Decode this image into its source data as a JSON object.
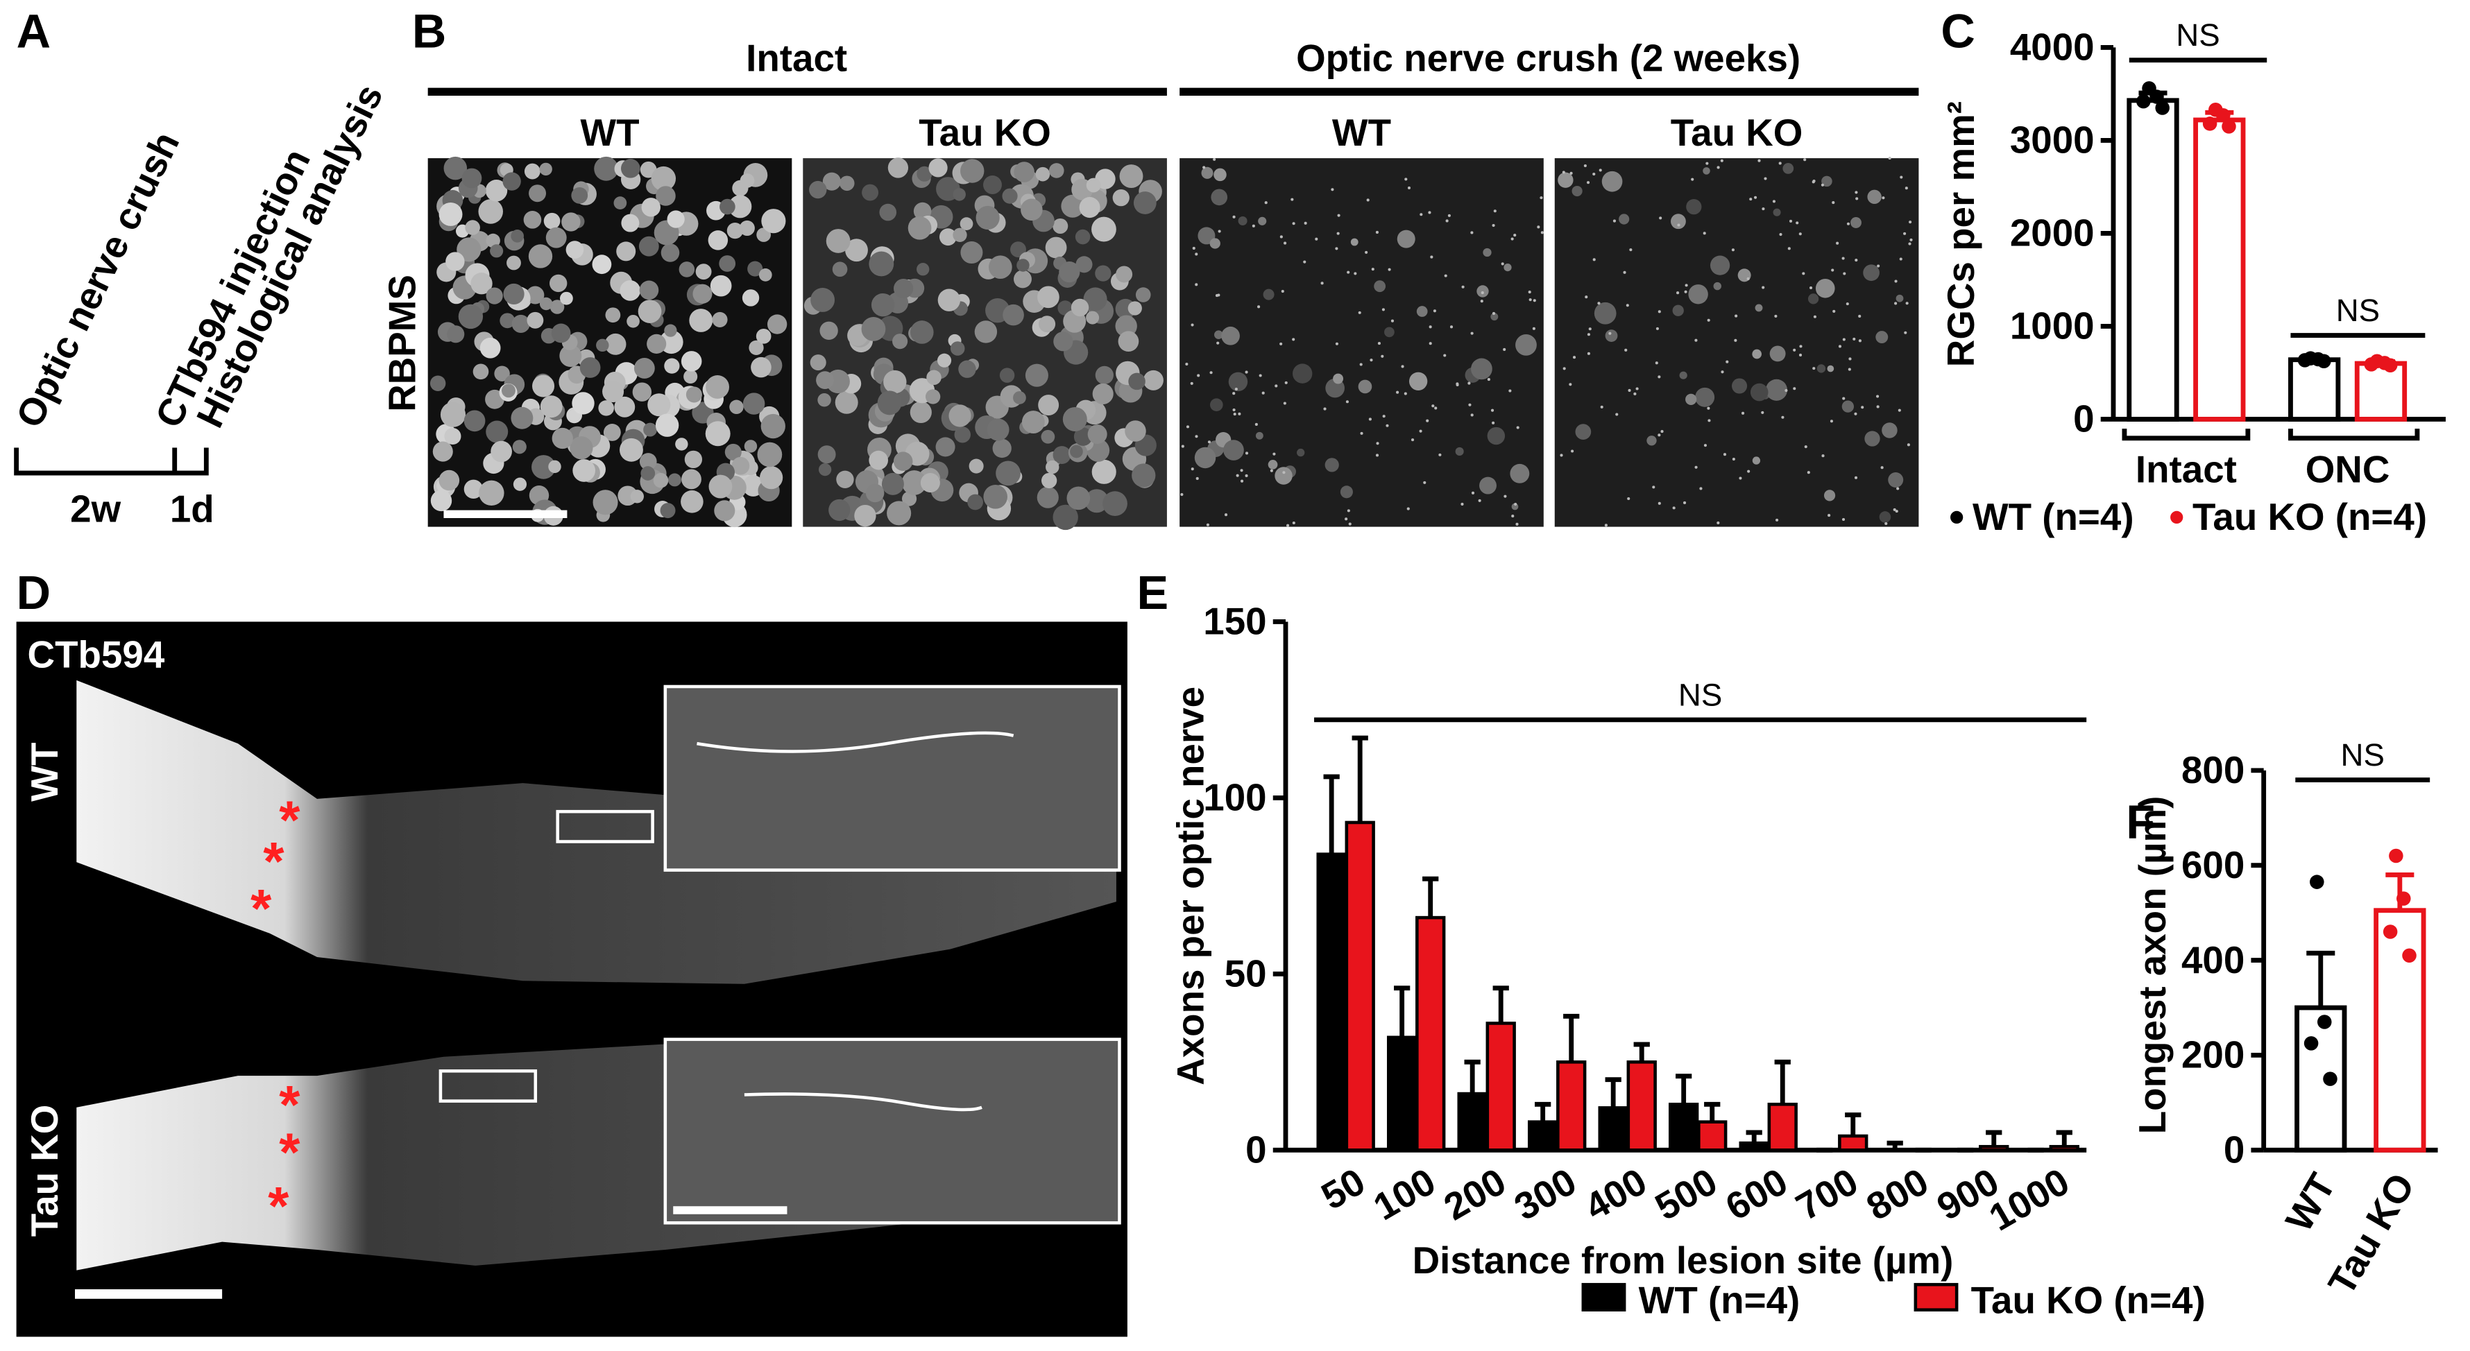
{
  "panel_labels": [
    "A",
    "B",
    "C",
    "D",
    "E",
    "F"
  ],
  "timeline": {
    "events": [
      "Optic nerve crush",
      "CTb594 injection",
      "Histological analysis"
    ],
    "intervals": [
      "2w",
      "1d"
    ]
  },
  "micrographs": {
    "groups": [
      "Intact",
      "Optic nerve crush (2 weeks)"
    ],
    "columns": [
      "WT",
      "Tau KO",
      "WT",
      "Tau KO"
    ],
    "stain": "RBPMS"
  },
  "nerves": {
    "stain": "CTb594",
    "rows": [
      "WT",
      "Tau KO"
    ]
  },
  "chart_data": [
    {
      "type": "bar",
      "bar_style": "outline",
      "ylabel": "RGCs per mm²",
      "categories": [
        "Intact",
        "ONC"
      ],
      "series": [
        {
          "name": "WT (n=4)",
          "color": "#000000",
          "values": [
            3430,
            640
          ],
          "errors": [
            80,
            20
          ],
          "points": [
            [
              3560,
              3470,
              3420,
              3350
            ],
            [
              655,
              645,
              635,
              625
            ]
          ]
        },
        {
          "name": "Tau KO (n=4)",
          "color": "#e8141c",
          "values": [
            3220,
            600
          ],
          "errors": [
            80,
            20
          ],
          "points": [
            [
              3330,
              3270,
              3180,
              3150
            ],
            [
              625,
              605,
              590,
              580
            ]
          ]
        }
      ],
      "ylim": [
        0,
        4000
      ],
      "yticks": [
        0,
        1000,
        2000,
        3000,
        4000
      ],
      "annotations": [
        "NS",
        "NS"
      ],
      "legend": "bottom"
    },
    {
      "type": "bar",
      "bar_style": "filled",
      "ylabel": "Axons per optic nerve",
      "xlabel": "Distance from lesion site (µm)",
      "categories": [
        "50",
        "100",
        "200",
        "300",
        "400",
        "500",
        "600",
        "700",
        "800",
        "900",
        "1000"
      ],
      "series": [
        {
          "name": "WT (n=4)",
          "color": "#000000",
          "values": [
            84,
            32,
            16,
            8,
            12,
            13,
            2,
            0,
            0,
            0,
            0
          ],
          "errors": [
            22,
            14,
            9,
            5,
            8,
            8,
            3,
            0,
            2,
            0,
            0
          ]
        },
        {
          "name": "Tau KO (n=4)",
          "color": "#e8141c",
          "values": [
            93,
            66,
            36,
            25,
            25,
            8,
            13,
            4,
            0,
            1,
            1
          ],
          "errors": [
            24,
            11,
            10,
            13,
            5,
            5,
            12,
            6,
            0,
            4,
            4
          ]
        }
      ],
      "ylim": [
        0,
        150
      ],
      "yticks": [
        0,
        50,
        100,
        150
      ],
      "annotations": [
        "NS"
      ],
      "legend": "bottom"
    },
    {
      "type": "bar",
      "bar_style": "outline",
      "ylabel": "Longest axon (µm)",
      "categories": [
        "WT",
        "Tau KO"
      ],
      "values": [
        300,
        505
      ],
      "errors": [
        115,
        75
      ],
      "colors": [
        "#000000",
        "#e8141c"
      ],
      "points": [
        [
          565,
          270,
          225,
          150
        ],
        [
          620,
          530,
          460,
          410
        ]
      ],
      "ylim": [
        0,
        800
      ],
      "yticks": [
        0,
        200,
        400,
        600,
        800
      ],
      "annotations": [
        "NS"
      ]
    }
  ]
}
